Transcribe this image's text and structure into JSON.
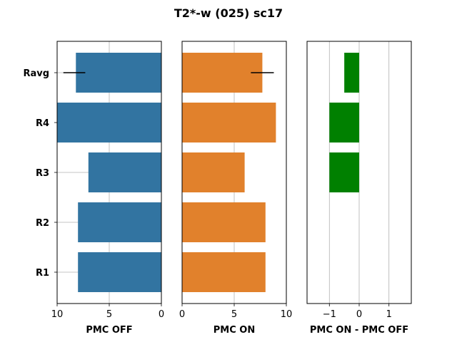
{
  "title": "T2*-w (025) sc17",
  "chart_data": [
    {
      "type": "bar",
      "orientation": "horizontal",
      "categories": [
        "R1",
        "R2",
        "R3",
        "R4",
        "Ravg"
      ],
      "values": [
        8,
        8,
        7,
        10,
        8.2
      ],
      "error": {
        "category": "Ravg",
        "low": 7.3,
        "high": 9.4
      },
      "xlim": [
        10,
        0
      ],
      "xticks": [
        10,
        5,
        0
      ],
      "xtick_labels": [
        "10",
        "5",
        "0"
      ],
      "xlabel": "PMC OFF",
      "color": "#3274a1",
      "grid": "vertical"
    },
    {
      "type": "bar",
      "orientation": "horizontal",
      "categories": [
        "R1",
        "R2",
        "R3",
        "R4",
        "Ravg"
      ],
      "values": [
        8,
        8,
        6,
        9,
        7.7
      ],
      "error": {
        "category": "Ravg",
        "low": 6.6,
        "high": 8.8
      },
      "xlim": [
        0,
        10
      ],
      "xticks": [
        0,
        5,
        10
      ],
      "xtick_labels": [
        "0",
        "5",
        "10"
      ],
      "xlabel": "PMC ON",
      "color": "#e1812c",
      "grid": "vertical"
    },
    {
      "type": "bar",
      "orientation": "horizontal",
      "categories": [
        "R1",
        "R2",
        "R3",
        "R4",
        "Ravg"
      ],
      "values": [
        0,
        0,
        -1,
        -1,
        -0.5
      ],
      "xlim": [
        -1.75,
        1.75
      ],
      "xticks": [
        -1,
        0,
        1
      ],
      "xtick_labels": [
        "−1",
        "0",
        "1"
      ],
      "xlabel": "PMC ON - PMC OFF",
      "color": "#008000",
      "grid": "vertical"
    }
  ]
}
